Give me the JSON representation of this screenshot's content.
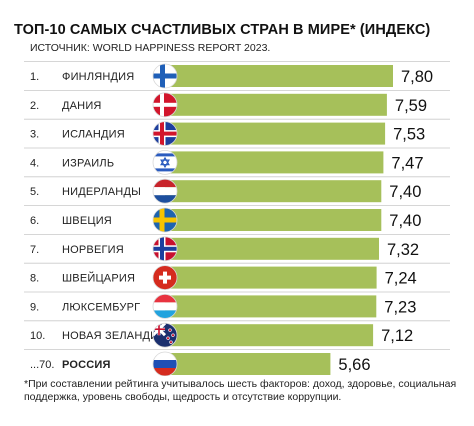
{
  "title": "ТОП-10 САМЫХ СЧАСТЛИВЫХ СТРАН В МИРЕ* (ИНДЕКС)",
  "source": "ИСТОЧНИК: WORLD HAPPINESS REPORT 2023.",
  "footnote": "*При составлении рейтинга учитывалось шесть факторов: доход, здоровье, социальная поддержка, уровень свободы, щедрость и отсутствие коррупции.",
  "colors": {
    "bar": "#a6c05a",
    "line": "#c9c9c9"
  },
  "chart_data": {
    "type": "bar",
    "orientation": "horizontal",
    "grid": false,
    "legend": "none",
    "categories": [
      "ФИНЛЯНДИЯ",
      "ДАНИЯ",
      "ИСЛАНДИЯ",
      "ИЗРАИЛЬ",
      "НИДЕРЛАНДЫ",
      "ШВЕЦИЯ",
      "НОРВЕГИЯ",
      "ШВЕЙЦАРИЯ",
      "ЛЮКСЕМБУРГ",
      "НОВАЯ ЗЕЛАНДИЯ",
      "РОССИЯ"
    ],
    "ranks": [
      "1.",
      "2.",
      "3.",
      "4.",
      "5.",
      "6.",
      "7.",
      "8.",
      "9.",
      "10.",
      "...70."
    ],
    "values": [
      7.8,
      7.59,
      7.53,
      7.47,
      7.4,
      7.4,
      7.32,
      7.24,
      7.23,
      7.12,
      5.66
    ],
    "value_labels": [
      "7,80",
      "7,59",
      "7,53",
      "7,47",
      "7,40",
      "7,40",
      "7,32",
      "7,24",
      "7,23",
      "7,12",
      "5,66"
    ],
    "flags": [
      "finland-flag-icon",
      "denmark-flag-icon",
      "iceland-flag-icon",
      "israel-flag-icon",
      "netherlands-flag-icon",
      "sweden-flag-icon",
      "norway-flag-icon",
      "switzerland-flag-icon",
      "luxembourg-flag-icon",
      "new-zealand-flag-icon",
      "russia-flag-icon"
    ],
    "highlight_index": 10
  }
}
